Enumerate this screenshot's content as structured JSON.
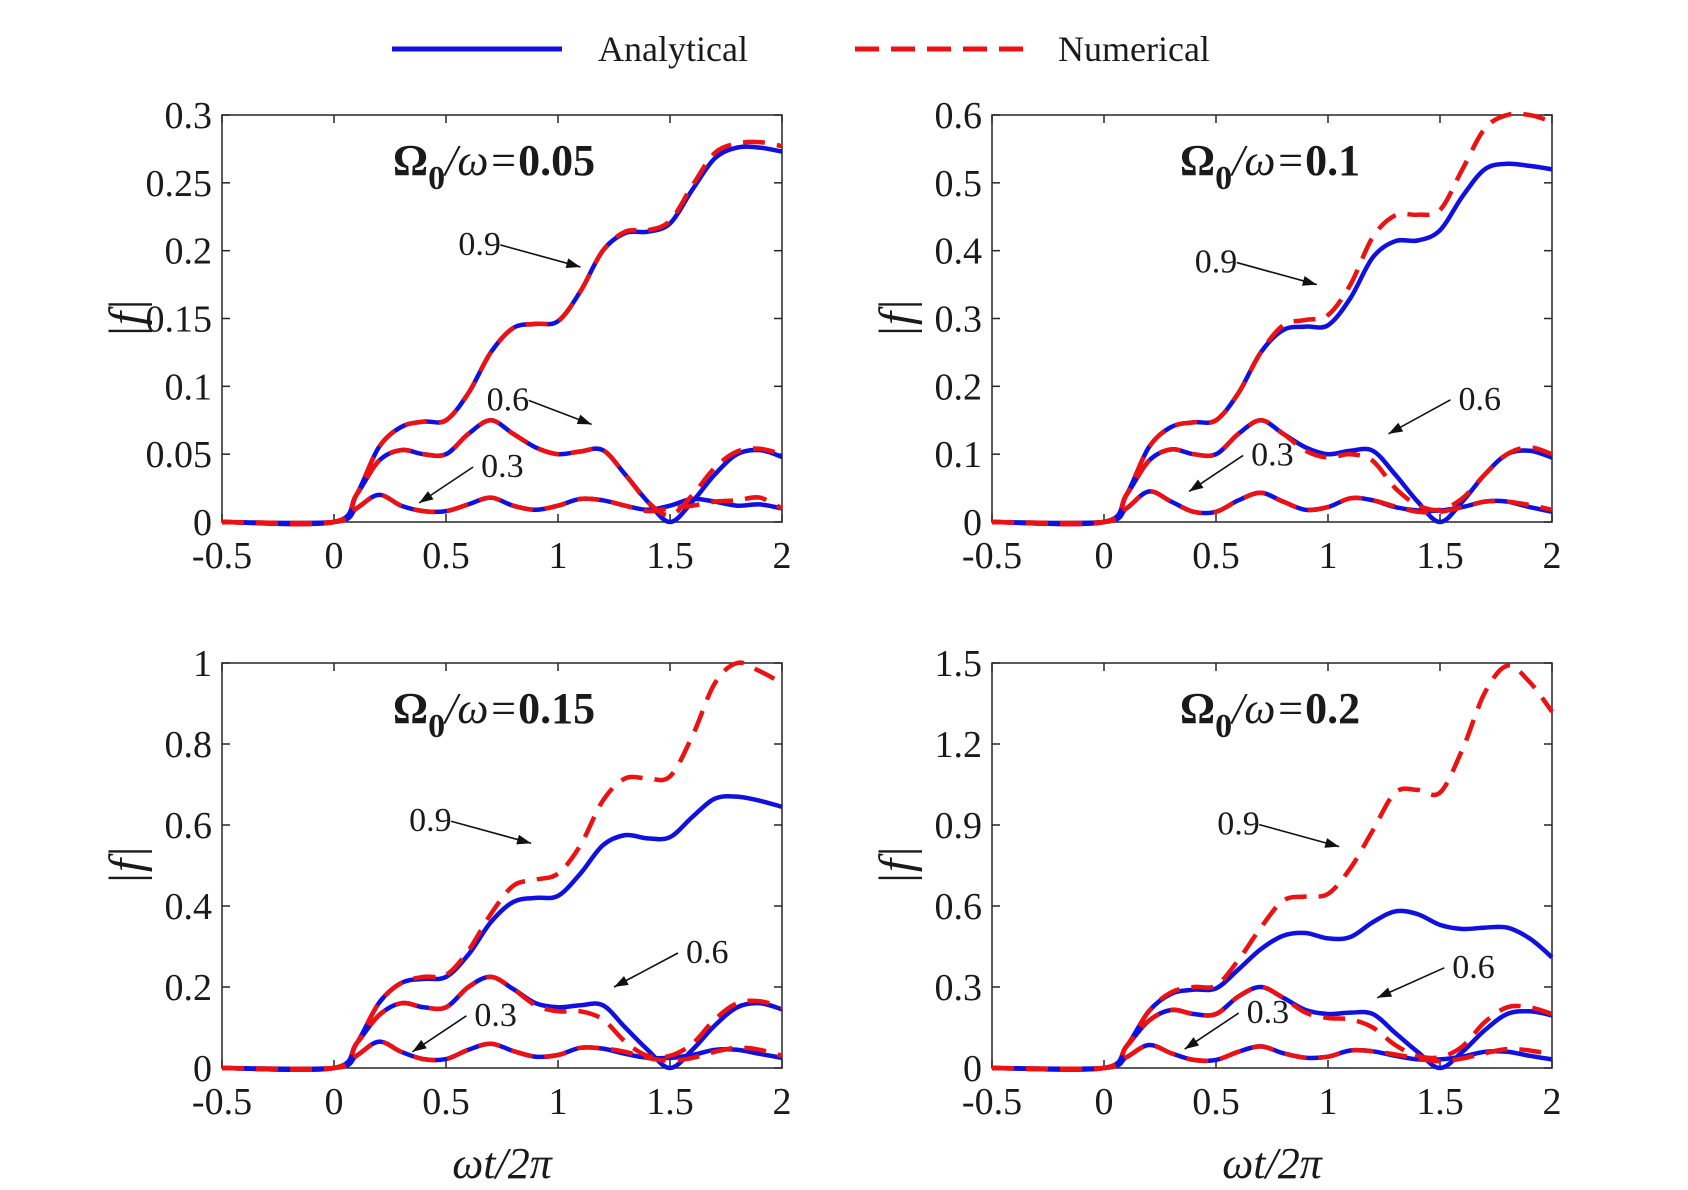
{
  "legend": {
    "analytical": "Analytical",
    "numerical": "Numerical",
    "analytical_color": "#1010e0",
    "numerical_color": "#ee1111"
  },
  "chart_data": [
    {
      "type": "line",
      "title_symbol": "Ω",
      "title_sub": "0",
      "title_mid": "/ω=",
      "title_value": "0.05",
      "xlabel": "",
      "ylabel": "|f|",
      "xlim": [
        -0.5,
        2
      ],
      "ylim": [
        0,
        0.3
      ],
      "xticks": [
        "-0.5",
        "0",
        "0.5",
        "1",
        "1.5",
        "2"
      ],
      "yticks": [
        "0",
        "0.05",
        "0.1",
        "0.15",
        "0.2",
        "0.25",
        "0.3"
      ],
      "x": [
        -0.5,
        0,
        0.1,
        0.2,
        0.3,
        0.4,
        0.5,
        0.6,
        0.7,
        0.8,
        0.9,
        1.0,
        1.1,
        1.2,
        1.3,
        1.4,
        1.5,
        1.6,
        1.7,
        1.8,
        1.9,
        2.0
      ],
      "series": [
        {
          "curve": "0.3",
          "kind": "analytical",
          "values": [
            0,
            0,
            0.01,
            0.02,
            0.012,
            0.008,
            0.008,
            0.013,
            0.018,
            0.012,
            0.009,
            0.012,
            0.017,
            0.016,
            0.012,
            0.009,
            0.012,
            0.017,
            0.015,
            0.012,
            0.013,
            0.01
          ]
        },
        {
          "curve": "0.3",
          "kind": "numerical",
          "values": [
            0,
            0,
            0.01,
            0.02,
            0.012,
            0.008,
            0.008,
            0.013,
            0.018,
            0.012,
            0.009,
            0.012,
            0.017,
            0.016,
            0.012,
            0.008,
            0.01,
            0.012,
            0.015,
            0.016,
            0.018,
            0.01
          ]
        },
        {
          "curve": "0.6",
          "kind": "analytical",
          "values": [
            0,
            0,
            0.02,
            0.045,
            0.053,
            0.05,
            0.05,
            0.065,
            0.075,
            0.065,
            0.055,
            0.05,
            0.052,
            0.053,
            0.035,
            0.015,
            0.0,
            0.015,
            0.035,
            0.05,
            0.053,
            0.048
          ]
        },
        {
          "curve": "0.6",
          "kind": "numerical",
          "values": [
            0,
            0,
            0.02,
            0.045,
            0.053,
            0.05,
            0.05,
            0.065,
            0.075,
            0.065,
            0.055,
            0.05,
            0.052,
            0.053,
            0.035,
            0.015,
            0.005,
            0.02,
            0.04,
            0.052,
            0.054,
            0.05
          ]
        },
        {
          "curve": "0.9",
          "kind": "analytical",
          "values": [
            0,
            0,
            0.02,
            0.055,
            0.07,
            0.074,
            0.075,
            0.095,
            0.125,
            0.143,
            0.146,
            0.148,
            0.17,
            0.2,
            0.213,
            0.214,
            0.22,
            0.245,
            0.268,
            0.276,
            0.276,
            0.273
          ]
        },
        {
          "curve": "0.9",
          "kind": "numerical",
          "values": [
            0,
            0,
            0.02,
            0.055,
            0.07,
            0.074,
            0.075,
            0.095,
            0.125,
            0.143,
            0.146,
            0.148,
            0.17,
            0.2,
            0.214,
            0.215,
            0.222,
            0.248,
            0.272,
            0.279,
            0.28,
            0.277
          ]
        }
      ],
      "annotations": [
        {
          "label": "0.9",
          "at": [
            1.1,
            0.188
          ]
        },
        {
          "label": "0.6",
          "at": [
            1.15,
            0.072
          ]
        },
        {
          "label": "0.3",
          "at": [
            0.38,
            0.014
          ]
        }
      ]
    },
    {
      "type": "line",
      "title_symbol": "Ω",
      "title_sub": "0",
      "title_mid": "/ω=",
      "title_value": "0.1",
      "xlabel": "",
      "ylabel": "|f|",
      "xlim": [
        -0.5,
        2
      ],
      "ylim": [
        0,
        0.6
      ],
      "xticks": [
        "-0.5",
        "0",
        "0.5",
        "1",
        "1.5",
        "2"
      ],
      "yticks": [
        "0",
        "0.1",
        "0.2",
        "0.3",
        "0.4",
        "0.5",
        "0.6"
      ],
      "x": [
        -0.5,
        0,
        0.1,
        0.2,
        0.3,
        0.4,
        0.5,
        0.6,
        0.7,
        0.8,
        0.9,
        1.0,
        1.1,
        1.2,
        1.3,
        1.4,
        1.5,
        1.6,
        1.7,
        1.8,
        1.9,
        2.0
      ],
      "series": [
        {
          "curve": "0.3",
          "kind": "analytical",
          "values": [
            0,
            0,
            0.02,
            0.045,
            0.03,
            0.015,
            0.015,
            0.032,
            0.043,
            0.03,
            0.018,
            0.022,
            0.035,
            0.032,
            0.022,
            0.017,
            0.017,
            0.022,
            0.03,
            0.03,
            0.022,
            0.015
          ]
        },
        {
          "curve": "0.3",
          "kind": "numerical",
          "values": [
            0,
            0,
            0.02,
            0.045,
            0.03,
            0.015,
            0.015,
            0.032,
            0.043,
            0.03,
            0.018,
            0.022,
            0.035,
            0.032,
            0.023,
            0.015,
            0.015,
            0.022,
            0.03,
            0.03,
            0.025,
            0.018
          ]
        },
        {
          "curve": "0.6",
          "kind": "analytical",
          "values": [
            0,
            0,
            0.04,
            0.09,
            0.107,
            0.1,
            0.1,
            0.13,
            0.15,
            0.13,
            0.11,
            0.1,
            0.105,
            0.105,
            0.07,
            0.03,
            0.0,
            0.03,
            0.07,
            0.1,
            0.105,
            0.095
          ]
        },
        {
          "curve": "0.6",
          "kind": "numerical",
          "values": [
            0,
            0,
            0.04,
            0.09,
            0.107,
            0.1,
            0.1,
            0.13,
            0.15,
            0.13,
            0.105,
            0.095,
            0.1,
            0.09,
            0.05,
            0.025,
            0.018,
            0.035,
            0.07,
            0.1,
            0.11,
            0.1
          ]
        },
        {
          "curve": "0.9",
          "kind": "analytical",
          "values": [
            0,
            0,
            0.04,
            0.11,
            0.14,
            0.147,
            0.15,
            0.19,
            0.25,
            0.283,
            0.288,
            0.29,
            0.33,
            0.39,
            0.414,
            0.415,
            0.43,
            0.48,
            0.52,
            0.528,
            0.525,
            0.52
          ]
        },
        {
          "curve": "0.9",
          "kind": "numerical",
          "values": [
            0,
            0,
            0.04,
            0.11,
            0.14,
            0.147,
            0.15,
            0.19,
            0.25,
            0.29,
            0.298,
            0.305,
            0.35,
            0.42,
            0.452,
            0.453,
            0.46,
            0.52,
            0.58,
            0.6,
            0.6,
            0.59
          ]
        }
      ],
      "annotations": [
        {
          "label": "0.9",
          "at": [
            0.95,
            0.35
          ]
        },
        {
          "label": "0.6",
          "at": [
            1.27,
            0.13
          ]
        },
        {
          "label": "0.3",
          "at": [
            0.38,
            0.045
          ]
        }
      ]
    },
    {
      "type": "line",
      "title_symbol": "Ω",
      "title_sub": "0",
      "title_mid": "/ω=",
      "title_value": "0.15",
      "xlabel": "ωt/2π",
      "ylabel": "|f|",
      "xlim": [
        -0.5,
        2
      ],
      "ylim": [
        0,
        1
      ],
      "xticks": [
        "-0.5",
        "0",
        "0.5",
        "1",
        "1.5",
        "2"
      ],
      "yticks": [
        "0",
        "0.2",
        "0.4",
        "0.6",
        "0.8",
        "1"
      ],
      "x": [
        -0.5,
        0,
        0.1,
        0.2,
        0.3,
        0.4,
        0.5,
        0.6,
        0.7,
        0.8,
        0.9,
        1.0,
        1.1,
        1.2,
        1.3,
        1.4,
        1.5,
        1.6,
        1.7,
        1.8,
        1.9,
        2.0
      ],
      "series": [
        {
          "curve": "0.3",
          "kind": "analytical",
          "values": [
            0,
            0,
            0.03,
            0.065,
            0.04,
            0.022,
            0.022,
            0.045,
            0.06,
            0.042,
            0.028,
            0.032,
            0.05,
            0.048,
            0.035,
            0.025,
            0.025,
            0.032,
            0.045,
            0.045,
            0.035,
            0.025
          ]
        },
        {
          "curve": "0.3",
          "kind": "numerical",
          "values": [
            0,
            0,
            0.03,
            0.065,
            0.04,
            0.022,
            0.022,
            0.045,
            0.06,
            0.042,
            0.028,
            0.032,
            0.05,
            0.048,
            0.04,
            0.025,
            0.018,
            0.025,
            0.04,
            0.05,
            0.045,
            0.03
          ]
        },
        {
          "curve": "0.6",
          "kind": "analytical",
          "values": [
            0,
            0,
            0.06,
            0.13,
            0.16,
            0.15,
            0.15,
            0.2,
            0.225,
            0.195,
            0.16,
            0.15,
            0.155,
            0.155,
            0.1,
            0.045,
            0.0,
            0.045,
            0.105,
            0.15,
            0.16,
            0.145
          ]
        },
        {
          "curve": "0.6",
          "kind": "numerical",
          "values": [
            0,
            0,
            0.06,
            0.13,
            0.16,
            0.15,
            0.15,
            0.2,
            0.225,
            0.195,
            0.155,
            0.14,
            0.14,
            0.12,
            0.065,
            0.03,
            0.03,
            0.06,
            0.12,
            0.16,
            0.165,
            0.15
          ]
        },
        {
          "curve": "0.9",
          "kind": "analytical",
          "values": [
            0,
            0,
            0.06,
            0.16,
            0.21,
            0.22,
            0.225,
            0.28,
            0.36,
            0.41,
            0.42,
            0.425,
            0.48,
            0.55,
            0.575,
            0.567,
            0.57,
            0.62,
            0.665,
            0.67,
            0.66,
            0.645
          ]
        },
        {
          "curve": "0.9",
          "kind": "numerical",
          "values": [
            0,
            0,
            0.06,
            0.16,
            0.21,
            0.225,
            0.23,
            0.29,
            0.38,
            0.45,
            0.465,
            0.48,
            0.55,
            0.66,
            0.715,
            0.715,
            0.72,
            0.82,
            0.95,
            1.0,
            0.98,
            0.95
          ]
        }
      ],
      "annotations": [
        {
          "label": "0.9",
          "at": [
            0.88,
            0.555
          ]
        },
        {
          "label": "0.6",
          "at": [
            1.25,
            0.2
          ]
        },
        {
          "label": "0.3",
          "at": [
            0.35,
            0.04
          ]
        }
      ]
    },
    {
      "type": "line",
      "title_symbol": "Ω",
      "title_sub": "0",
      "title_mid": "/ω=",
      "title_value": "0.2",
      "xlabel": "ωt/2π",
      "ylabel": "|f|",
      "xlim": [
        -0.5,
        2
      ],
      "ylim": [
        0,
        1.5
      ],
      "xticks": [
        "-0.5",
        "0",
        "0.5",
        "1",
        "1.5",
        "2"
      ],
      "yticks": [
        "0",
        "0.3",
        "0.6",
        "0.9",
        "1.2",
        "1.5"
      ],
      "x": [
        -0.5,
        0,
        0.1,
        0.2,
        0.3,
        0.4,
        0.5,
        0.6,
        0.7,
        0.8,
        0.9,
        1.0,
        1.1,
        1.2,
        1.3,
        1.4,
        1.5,
        1.6,
        1.7,
        1.8,
        1.9,
        2.0
      ],
      "series": [
        {
          "curve": "0.3",
          "kind": "analytical",
          "values": [
            0,
            0,
            0.04,
            0.085,
            0.055,
            0.03,
            0.03,
            0.06,
            0.08,
            0.055,
            0.038,
            0.042,
            0.065,
            0.062,
            0.045,
            0.032,
            0.032,
            0.042,
            0.06,
            0.06,
            0.045,
            0.032
          ]
        },
        {
          "curve": "0.3",
          "kind": "numerical",
          "values": [
            0,
            0,
            0.04,
            0.085,
            0.055,
            0.03,
            0.03,
            0.06,
            0.08,
            0.055,
            0.038,
            0.042,
            0.065,
            0.062,
            0.05,
            0.035,
            0.025,
            0.035,
            0.055,
            0.07,
            0.065,
            0.05
          ]
        },
        {
          "curve": "0.6",
          "kind": "analytical",
          "values": [
            0,
            0,
            0.08,
            0.175,
            0.215,
            0.2,
            0.2,
            0.265,
            0.3,
            0.26,
            0.215,
            0.2,
            0.205,
            0.2,
            0.13,
            0.06,
            0.0,
            0.06,
            0.14,
            0.2,
            0.21,
            0.195
          ]
        },
        {
          "curve": "0.6",
          "kind": "numerical",
          "values": [
            0,
            0,
            0.08,
            0.175,
            0.215,
            0.2,
            0.2,
            0.265,
            0.3,
            0.26,
            0.205,
            0.185,
            0.18,
            0.15,
            0.085,
            0.045,
            0.04,
            0.08,
            0.17,
            0.225,
            0.225,
            0.2
          ]
        },
        {
          "curve": "0.9",
          "kind": "analytical",
          "values": [
            0,
            0,
            0.08,
            0.21,
            0.275,
            0.29,
            0.295,
            0.365,
            0.44,
            0.49,
            0.5,
            0.48,
            0.485,
            0.54,
            0.58,
            0.57,
            0.53,
            0.515,
            0.52,
            0.52,
            0.48,
            0.41
          ]
        },
        {
          "curve": "0.9",
          "kind": "numerical",
          "values": [
            0,
            0,
            0.08,
            0.21,
            0.28,
            0.3,
            0.305,
            0.4,
            0.52,
            0.62,
            0.635,
            0.645,
            0.74,
            0.88,
            1.02,
            1.03,
            1.02,
            1.18,
            1.39,
            1.49,
            1.43,
            1.32
          ]
        }
      ],
      "annotations": [
        {
          "label": "0.9",
          "at": [
            1.05,
            0.82
          ]
        },
        {
          "label": "0.6",
          "at": [
            1.22,
            0.26
          ]
        },
        {
          "label": "0.3",
          "at": [
            0.36,
            0.07
          ]
        }
      ]
    }
  ]
}
